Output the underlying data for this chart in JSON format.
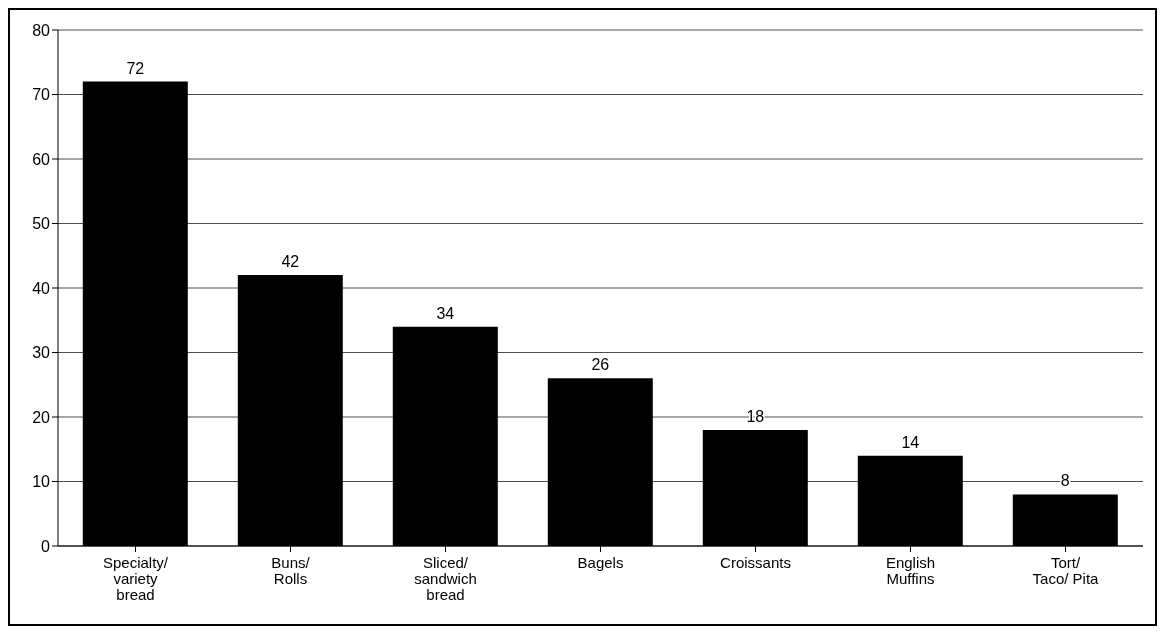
{
  "chart_data": {
    "type": "bar",
    "categories": [
      "Specialty/ variety bread",
      "Buns/ Rolls",
      "Sliced/ sandwich bread",
      "Bagels",
      "Croissants",
      "English Muffins",
      "Tort/ Taco/ Pita"
    ],
    "values": [
      72,
      42,
      34,
      26,
      18,
      14,
      8
    ],
    "color": "#000000",
    "ylim": [
      0,
      80
    ],
    "yticks": [
      0,
      10,
      20,
      30,
      40,
      50,
      60,
      70,
      80
    ],
    "grid": "y",
    "data_labels": true
  }
}
